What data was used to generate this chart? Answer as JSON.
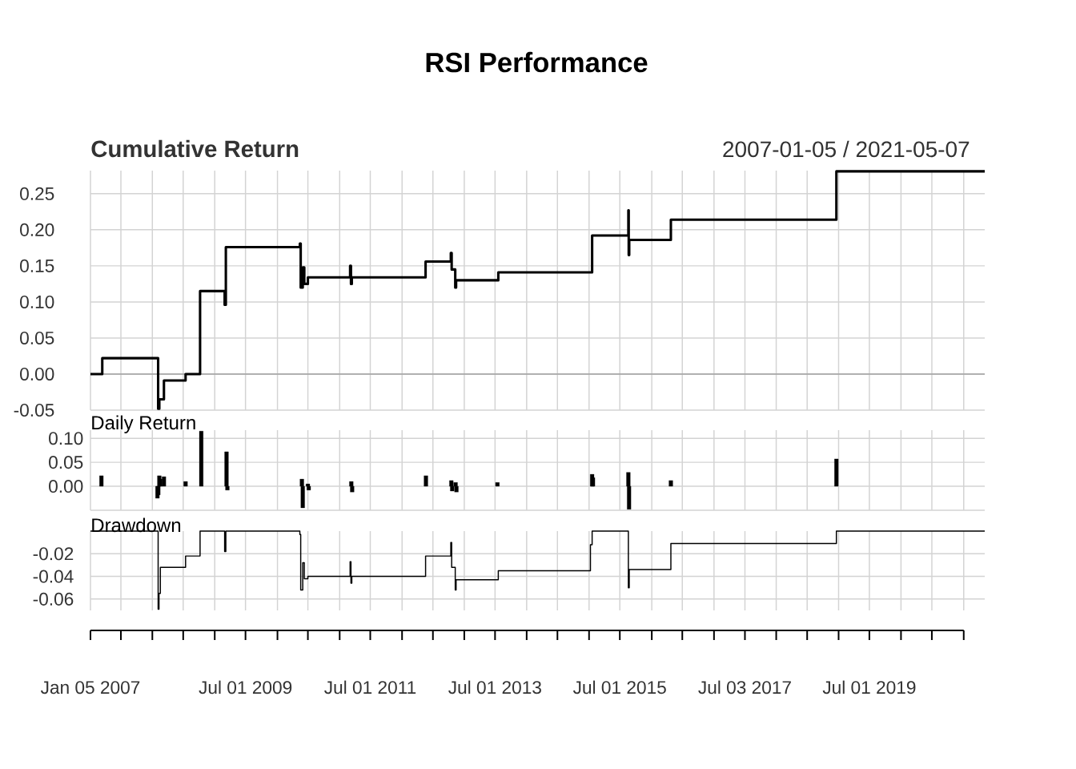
{
  "chart_data": [
    {
      "type": "step",
      "title": "RSI Performance",
      "subtitle": "Cumulative Return",
      "annotations": [
        "2007-01-05 / 2021-05-07"
      ],
      "x": [
        "2007-01-05",
        "2007-03-15",
        "2008-02-05",
        "2008-02-12",
        "2008-03-10",
        "2008-07-15",
        "2008-10-08",
        "2009-03-01",
        "2009-03-08",
        "2010-05-15",
        "2010-05-20",
        "2010-06-01",
        "2010-06-10",
        "2010-07-01",
        "2011-03-05",
        "2011-03-10",
        "2011-03-15",
        "2012-05-20",
        "2012-10-15",
        "2012-10-20",
        "2012-11-10",
        "2012-11-15",
        "2013-07-20",
        "2015-01-20",
        "2015-08-20",
        "2015-08-22",
        "2015-08-25",
        "2016-04-25",
        "2018-12-20",
        "2021-05-07"
      ],
      "series": [
        {
          "color": "#000000",
          "values": [
            0.0,
            0.022,
            -0.048,
            -0.035,
            -0.009,
            0.0,
            0.115,
            0.096,
            0.176,
            0.181,
            0.12,
            0.148,
            0.125,
            0.134,
            0.15,
            0.125,
            0.134,
            0.156,
            0.168,
            0.145,
            0.12,
            0.13,
            0.141,
            0.192,
            0.227,
            0.165,
            0.186,
            0.214,
            0.281,
            0.281
          ]
        }
      ],
      "xlim": [
        "2007-01-05",
        "2021-05-07"
      ],
      "ylim": [
        -0.05,
        0.282
      ],
      "xticks": [
        {
          "value": "2007-01-05",
          "label": null
        },
        {
          "value": "2007-07-02",
          "label": null
        },
        {
          "value": "2008-01-02",
          "label": null
        },
        {
          "value": "2008-07-01",
          "label": null
        },
        {
          "value": "2009-01-02",
          "label": null
        },
        {
          "value": "2009-07-01",
          "label": null
        },
        {
          "value": "2010-01-04",
          "label": null
        },
        {
          "value": "2010-07-01",
          "label": null
        },
        {
          "value": "2011-01-03",
          "label": null
        },
        {
          "value": "2011-07-01",
          "label": null
        },
        {
          "value": "2012-01-03",
          "label": null
        },
        {
          "value": "2012-07-02",
          "label": null
        },
        {
          "value": "2013-01-02",
          "label": null
        },
        {
          "value": "2013-07-01",
          "label": null
        },
        {
          "value": "2014-01-02",
          "label": null
        },
        {
          "value": "2014-07-01",
          "label": null
        },
        {
          "value": "2015-01-02",
          "label": null
        },
        {
          "value": "2015-07-01",
          "label": null
        },
        {
          "value": "2016-01-04",
          "label": null
        },
        {
          "value": "2016-07-01",
          "label": null
        },
        {
          "value": "2017-01-03",
          "label": null
        },
        {
          "value": "2017-07-03",
          "label": null
        },
        {
          "value": "2018-01-02",
          "label": null
        },
        {
          "value": "2018-07-02",
          "label": null
        },
        {
          "value": "2019-01-02",
          "label": null
        },
        {
          "value": "2019-07-01",
          "label": null
        },
        {
          "value": "2020-01-02",
          "label": null
        },
        {
          "value": "2020-07-01",
          "label": null
        },
        {
          "value": "2021-01-04",
          "label": null
        }
      ],
      "yticks": [
        {
          "value": -0.05,
          "label": "-0.05"
        },
        {
          "value": 0,
          "label": "0.00"
        },
        {
          "value": 0.05,
          "label": "0.05"
        },
        {
          "value": 0.1,
          "label": "0.10"
        },
        {
          "value": 0.15,
          "label": "0.15"
        },
        {
          "value": 0.2,
          "label": "0.20"
        },
        {
          "value": 0.25,
          "label": "0.25"
        }
      ],
      "ref_lines": [
        {
          "axis": "y",
          "value": 0,
          "color": "#a0a0a0"
        }
      ],
      "grid": true,
      "tick_labels": "y"
    },
    {
      "type": "bar",
      "title": "Daily Return",
      "x": [
        "2007-03-10",
        "2008-02-01",
        "2008-02-06",
        "2008-02-12",
        "2008-02-18",
        "2008-03-10",
        "2008-07-15",
        "2008-10-15",
        "2009-03-12",
        "2009-03-17",
        "2010-05-27",
        "2010-06-01",
        "2010-07-01",
        "2010-07-06",
        "2011-03-12",
        "2011-03-17",
        "2012-05-22",
        "2012-10-18",
        "2012-10-23",
        "2012-11-12",
        "2012-11-17",
        "2013-07-15",
        "2015-01-20",
        "2015-01-25",
        "2015-08-20",
        "2015-08-24",
        "2016-04-25",
        "2018-12-20"
      ],
      "series": [
        {
          "color": "#000000",
          "values": [
            0.022,
            -0.025,
            -0.018,
            0.022,
            0.015,
            0.02,
            0.01,
            0.115,
            0.072,
            -0.008,
            0.015,
            -0.045,
            0.005,
            -0.008,
            0.01,
            -0.012,
            0.022,
            0.012,
            -0.01,
            0.008,
            -0.012,
            0.008,
            0.025,
            0.018,
            0.029,
            -0.048,
            0.012,
            0.057
          ]
        }
      ],
      "xlim": [
        "2007-01-05",
        "2021-05-07"
      ],
      "ylim": [
        -0.05,
        0.117
      ],
      "xticks": [
        {
          "value": "2007-01-05",
          "label": null
        },
        {
          "value": "2007-07-02",
          "label": null
        },
        {
          "value": "2008-01-02",
          "label": null
        },
        {
          "value": "2008-07-01",
          "label": null
        },
        {
          "value": "2009-01-02",
          "label": null
        },
        {
          "value": "2009-07-01",
          "label": null
        },
        {
          "value": "2010-01-04",
          "label": null
        },
        {
          "value": "2010-07-01",
          "label": null
        },
        {
          "value": "2011-01-03",
          "label": null
        },
        {
          "value": "2011-07-01",
          "label": null
        },
        {
          "value": "2012-01-03",
          "label": null
        },
        {
          "value": "2012-07-02",
          "label": null
        },
        {
          "value": "2013-01-02",
          "label": null
        },
        {
          "value": "2013-07-01",
          "label": null
        },
        {
          "value": "2014-01-02",
          "label": null
        },
        {
          "value": "2014-07-01",
          "label": null
        },
        {
          "value": "2015-01-02",
          "label": null
        },
        {
          "value": "2015-07-01",
          "label": null
        },
        {
          "value": "2016-01-04",
          "label": null
        },
        {
          "value": "2016-07-01",
          "label": null
        },
        {
          "value": "2017-01-03",
          "label": null
        },
        {
          "value": "2017-07-03",
          "label": null
        },
        {
          "value": "2018-01-02",
          "label": null
        },
        {
          "value": "2018-07-02",
          "label": null
        },
        {
          "value": "2019-01-02",
          "label": null
        },
        {
          "value": "2019-07-01",
          "label": null
        },
        {
          "value": "2020-01-02",
          "label": null
        },
        {
          "value": "2020-07-01",
          "label": null
        },
        {
          "value": "2021-01-04",
          "label": null
        }
      ],
      "yticks": [
        {
          "value": -0.05,
          "label": null
        },
        {
          "value": 0,
          "label": "0.00"
        },
        {
          "value": 0.05,
          "label": "0.05"
        },
        {
          "value": 0.1,
          "label": "0.10"
        }
      ],
      "grid": true,
      "tick_labels": "y"
    },
    {
      "type": "step",
      "title": "Drawdown",
      "x": [
        "2007-01-05",
        "2008-02-05",
        "2008-02-10",
        "2008-02-18",
        "2008-07-15",
        "2008-10-08",
        "2009-03-01",
        "2009-03-08",
        "2010-05-15",
        "2010-05-20",
        "2010-06-01",
        "2010-06-10",
        "2010-07-01",
        "2011-03-05",
        "2011-03-10",
        "2011-03-15",
        "2012-05-20",
        "2012-10-15",
        "2012-10-20",
        "2012-11-10",
        "2012-11-15",
        "2013-07-20",
        "2015-01-10",
        "2015-01-20",
        "2015-08-20",
        "2015-08-25",
        "2016-04-25",
        "2018-12-20",
        "2021-05-07"
      ],
      "series": [
        {
          "color": "#000000",
          "values": [
            0,
            -0.069,
            -0.055,
            -0.032,
            -0.022,
            0,
            -0.018,
            0,
            -0.003,
            -0.052,
            -0.028,
            -0.042,
            -0.04,
            -0.027,
            -0.046,
            -0.04,
            -0.022,
            -0.01,
            -0.032,
            -0.052,
            -0.043,
            -0.035,
            -0.012,
            0,
            -0.05,
            -0.034,
            -0.011,
            0,
            0
          ]
        }
      ],
      "xlim": [
        "2007-01-05",
        "2021-05-07"
      ],
      "ylim": [
        -0.07,
        0
      ],
      "xticks": [
        {
          "value": "2007-01-05",
          "label": "Jan 05 2007"
        },
        {
          "value": "2007-07-02",
          "label": null
        },
        {
          "value": "2008-01-02",
          "label": null
        },
        {
          "value": "2008-07-01",
          "label": null
        },
        {
          "value": "2009-01-02",
          "label": null
        },
        {
          "value": "2009-07-01",
          "label": "Jul 01 2009"
        },
        {
          "value": "2010-01-04",
          "label": null
        },
        {
          "value": "2010-07-01",
          "label": null
        },
        {
          "value": "2011-01-03",
          "label": null
        },
        {
          "value": "2011-07-01",
          "label": "Jul 01 2011"
        },
        {
          "value": "2012-01-03",
          "label": null
        },
        {
          "value": "2012-07-02",
          "label": null
        },
        {
          "value": "2013-01-02",
          "label": null
        },
        {
          "value": "2013-07-01",
          "label": "Jul 01 2013"
        },
        {
          "value": "2014-01-02",
          "label": null
        },
        {
          "value": "2014-07-01",
          "label": null
        },
        {
          "value": "2015-01-02",
          "label": null
        },
        {
          "value": "2015-07-01",
          "label": "Jul 01 2015"
        },
        {
          "value": "2016-01-04",
          "label": null
        },
        {
          "value": "2016-07-01",
          "label": null
        },
        {
          "value": "2017-01-03",
          "label": null
        },
        {
          "value": "2017-07-03",
          "label": "Jul 03 2017"
        },
        {
          "value": "2018-01-02",
          "label": null
        },
        {
          "value": "2018-07-02",
          "label": null
        },
        {
          "value": "2019-01-02",
          "label": null
        },
        {
          "value": "2019-07-01",
          "label": "Jul 01 2019"
        },
        {
          "value": "2020-01-02",
          "label": null
        },
        {
          "value": "2020-07-01",
          "label": null
        },
        {
          "value": "2021-01-04",
          "label": null
        }
      ],
      "yticks": [
        {
          "value": -0.06,
          "label": "-0.06"
        },
        {
          "value": -0.04,
          "label": "-0.04"
        },
        {
          "value": -0.02,
          "label": "-0.02"
        }
      ],
      "grid": true
    }
  ]
}
